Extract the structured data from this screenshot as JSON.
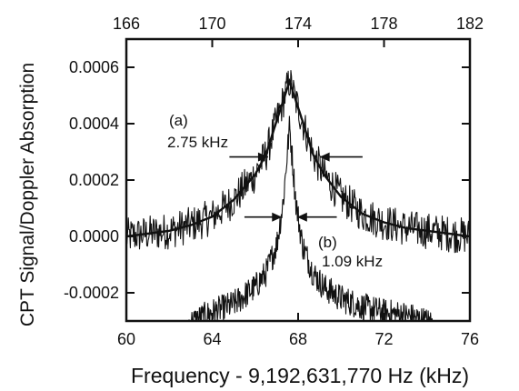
{
  "chart_data": {
    "type": "line",
    "xlabel": "Frequency - 9,192,631,770 Hz (kHz)",
    "ylabel": "CPT Signal/Doppler Absorption",
    "xlim": [
      60,
      76
    ],
    "ylim": [
      -0.0003,
      0.0007
    ],
    "x_ticks": [
      "60",
      "64",
      "68",
      "72",
      "76"
    ],
    "y_ticks": [
      "-0.0002",
      "0.0000",
      "0.0002",
      "0.0004",
      "0.0006"
    ],
    "top_axis": {
      "xlim": [
        166,
        182
      ],
      "ticks": [
        "166",
        "170",
        "174",
        "178",
        "182"
      ]
    },
    "grid": false,
    "series": [
      {
        "name": "(a)",
        "peak_x": 67.6,
        "peak_y": 0.00055,
        "baseline": 0.0,
        "fwhm_label": "2.75 kHz",
        "x": [
          60,
          62,
          63,
          64,
          65,
          66,
          66.5,
          67,
          67.6,
          68.2,
          68.7,
          69.2,
          70,
          71,
          72,
          73,
          74,
          76
        ],
        "y": [
          0.0,
          2e-05,
          4e-05,
          7e-05,
          0.00013,
          0.00022,
          0.00029,
          0.00041,
          0.00055,
          0.00041,
          0.00029,
          0.00022,
          0.00014,
          8e-05,
          5e-05,
          3e-05,
          2e-05,
          0.0
        ]
      },
      {
        "name": "(b)",
        "peak_x": 67.6,
        "peak_y": 0.00039,
        "baseline": -0.00025,
        "fwhm_label": "1.09 kHz",
        "x": [
          62.9,
          64,
          65,
          66,
          66.5,
          67,
          67.3,
          67.6,
          67.9,
          68.2,
          68.7,
          69.2,
          70,
          71,
          72,
          73,
          74.3
        ],
        "y": [
          -0.00031,
          -0.00027,
          -0.00024,
          -0.00018,
          -0.00013,
          -3e-05,
          0.00012,
          0.00039,
          0.00012,
          -3e-05,
          -0.00013,
          -0.00018,
          -0.00022,
          -0.00025,
          -0.00027,
          -0.00028,
          -0.00031
        ]
      }
    ],
    "annotations": {
      "a_label": "(a)",
      "a_width": "2.75 kHz",
      "b_label": "(b)",
      "b_width": "1.09 kHz"
    }
  }
}
